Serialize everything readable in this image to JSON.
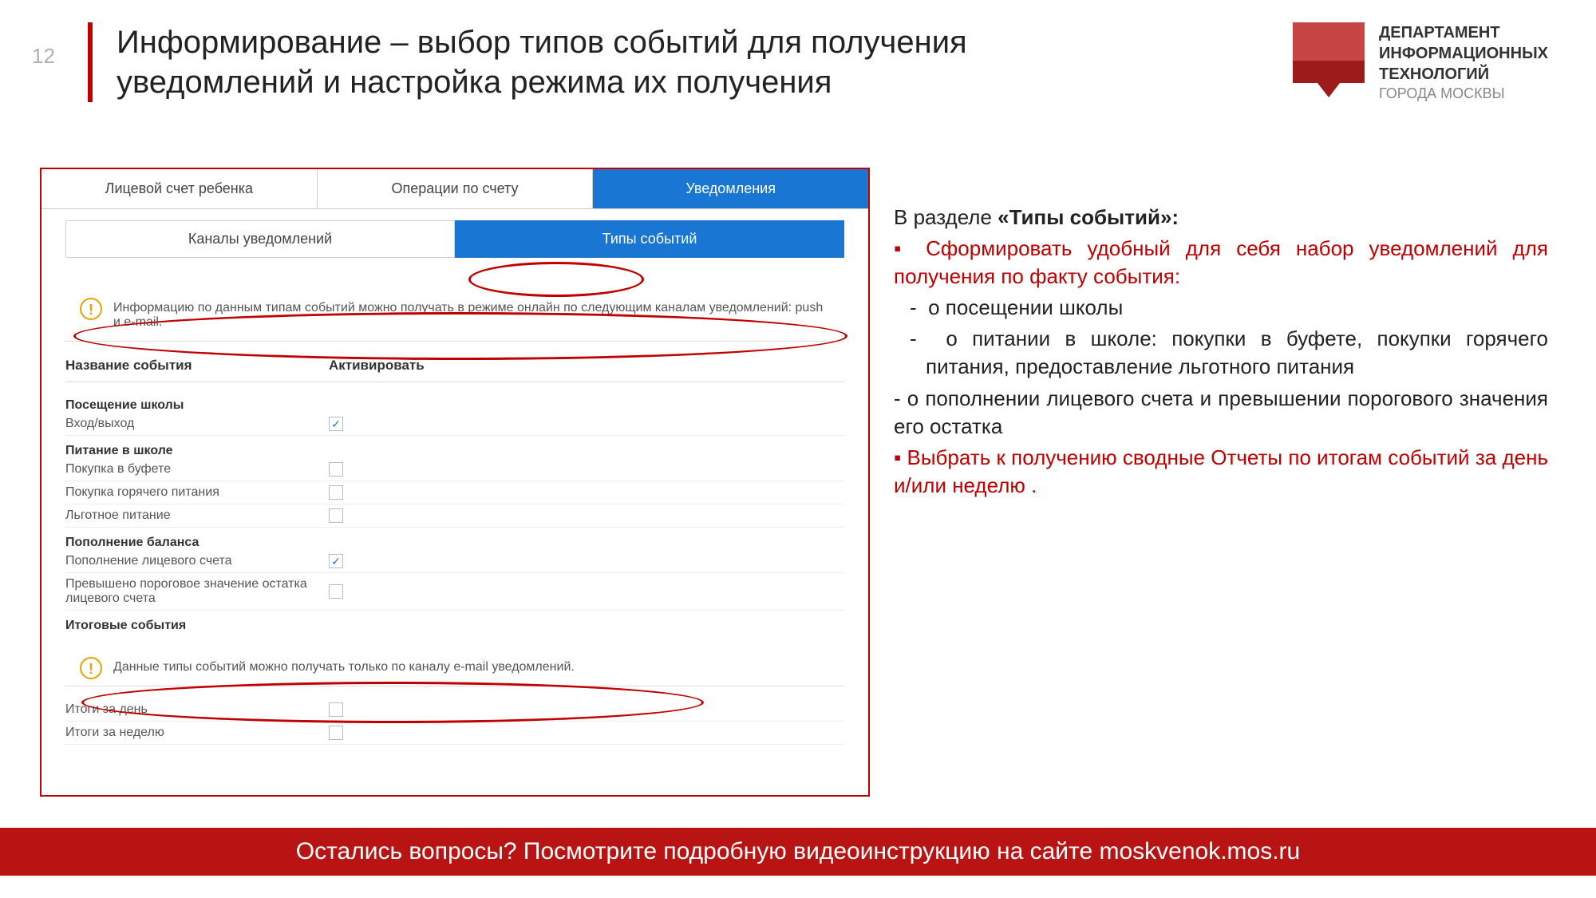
{
  "page_number": "12",
  "title": "Информирование – выбор типов событий для получения уведомлений и настройка режима их получения",
  "logo": {
    "line1": "ДЕПАРТАМЕНТ",
    "line2": "ИНФОРМАЦИОННЫХ",
    "line3": "ТЕХНОЛОГИЙ",
    "line4": "ГОРОДА МОСКВЫ"
  },
  "screenshot": {
    "tabs": {
      "t1": "Лицевой счет ребенка",
      "t2": "Операции по счету",
      "t3": "Уведомления"
    },
    "sub_tabs": {
      "s1": "Каналы уведомлений",
      "s2": "Типы событий"
    },
    "info1": "Информацию по данным типам событий можно получать в режиме онлайн по следующим каналам уведомлений: push и e-mail.",
    "headers": {
      "name": "Название события",
      "activate": "Активировать"
    },
    "sections": {
      "school": "Посещение школы",
      "meal": "Питание в школе",
      "balance": "Пополнение баланса",
      "summary": "Итоговые события"
    },
    "events": {
      "entry_exit": "Вход/выход",
      "buffet": "Покупка в буфете",
      "hot": "Покупка горячего питания",
      "free": "Льготное питание",
      "topup": "Пополнение лицевого счета",
      "threshold": "Превышено пороговое значение остатка лицевого счета",
      "day": "Итоги за день",
      "week": "Итоги за неделю"
    },
    "info2": "Данные типы событий можно получать только по каналу e-mail уведомлений."
  },
  "right": {
    "heading_prefix": "В разделе ",
    "heading_bold": "«Типы событий»:",
    "bullet1": "Сформировать удобный для себя набор уведомлений для получения по факту события:",
    "dash1": "о посещении школы",
    "dash2": "о питании в школе: покупки в буфете, покупки горячего питания, предоставление льготного питания",
    "dash3": "о пополнении лицевого счета и превышении порогового значения его остатка",
    "bullet2": "Выбрать к получению сводные Отчеты по итогам событий за день и/или неделю ."
  },
  "footer": "Остались вопросы? Посмотрите подробную видеоинструкцию на сайте moskvenok.mos.ru"
}
